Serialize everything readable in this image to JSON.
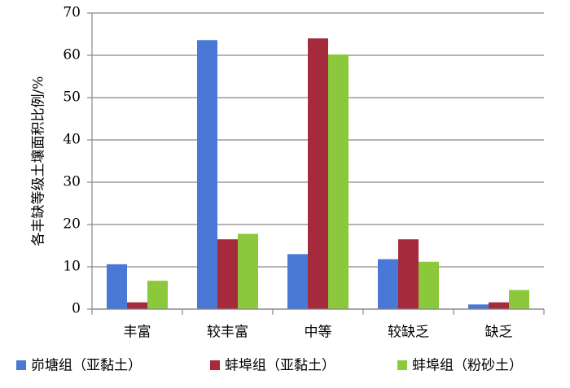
{
  "chart_data": {
    "type": "bar",
    "y_label": "各丰缺等级土壤面积比例/%",
    "categories": [
      "丰富",
      "较丰富",
      "中等",
      "较缺乏",
      "缺乏"
    ],
    "series": [
      {
        "name": "峁塘组（亚黏土）",
        "color": "#4a78d6",
        "values": [
          10.6,
          63.6,
          13,
          11.8,
          1.1
        ]
      },
      {
        "name": "蚌埠组（亚黏土）",
        "color": "#a52a3c",
        "values": [
          1.6,
          16.5,
          64,
          16.5,
          1.6
        ]
      },
      {
        "name": "蚌埠组（粉砂土）",
        "color": "#8cc83c",
        "values": [
          6.7,
          17.8,
          60.2,
          11.2,
          4.5
        ]
      }
    ],
    "ylim": [
      0,
      70
    ],
    "yticks": [
      0,
      10,
      20,
      30,
      40,
      50,
      60,
      70
    ],
    "grid": true,
    "legend": "bottom"
  }
}
